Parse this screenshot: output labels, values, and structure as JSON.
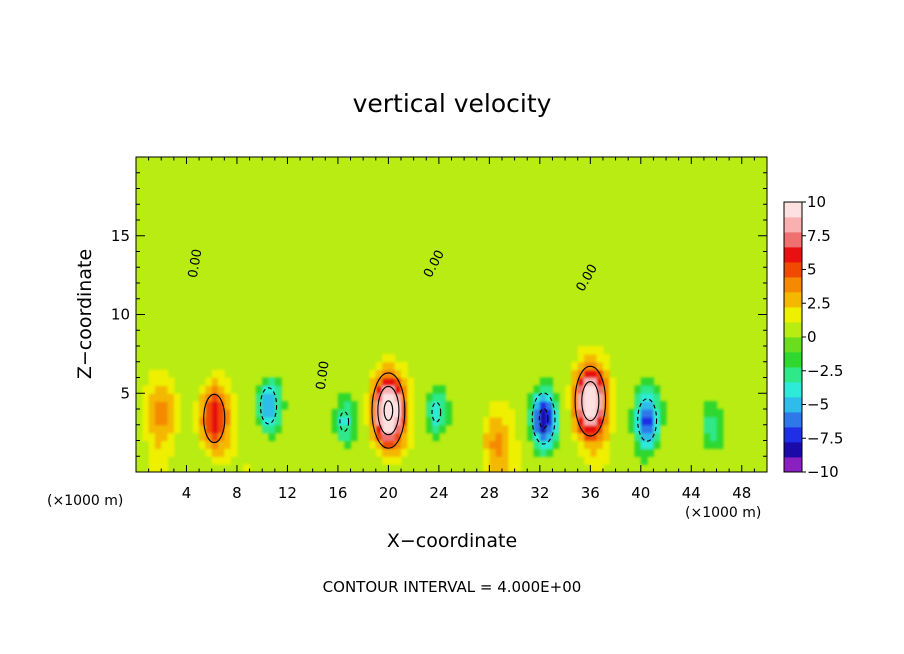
{
  "chart_data": {
    "type": "heatmap",
    "title": "vertical velocity",
    "xlabel": "X−coordinate",
    "ylabel": "Z−coordinate",
    "x_unit": "(×1000 m)",
    "x_unit_right": "(×1000 m)",
    "xlim": [
      0,
      50
    ],
    "ylim": [
      0,
      20
    ],
    "x_ticks": [
      4,
      8,
      12,
      16,
      20,
      24,
      28,
      32,
      36,
      40,
      44,
      48
    ],
    "y_ticks": [
      5,
      10,
      15
    ],
    "contour_interval_label": "CONTOUR INTERVAL = 4.000E+00",
    "contour_labels": [
      {
        "text": "0.00",
        "x": 5.0,
        "y": 13.2,
        "rotate": -80
      },
      {
        "text": "0.00",
        "x": 15.1,
        "y": 6.1,
        "rotate": -82
      },
      {
        "text": "0.00",
        "x": 23.9,
        "y": 13.1,
        "rotate": -62
      },
      {
        "text": "0.00",
        "x": 36.0,
        "y": 12.2,
        "rotate": -60
      }
    ],
    "colorbar": {
      "min": -10,
      "max": 10,
      "tick_labels": [
        "10",
        "7.5",
        "5",
        "2.5",
        "0",
        "−2.5",
        "−5",
        "−7.5",
        "−10"
      ],
      "tick_values": [
        10,
        7.5,
        5,
        2.5,
        0,
        -2.5,
        -5,
        -7.5,
        -10
      ],
      "colors": [
        "#8a1fc2",
        "#1a0aa8",
        "#1f2fe6",
        "#2f78ea",
        "#2fbcea",
        "#2fead8",
        "#2ee88a",
        "#2fd82f",
        "#6ade1e",
        "#b8ec12",
        "#eef000",
        "#f5b800",
        "#f58a00",
        "#f04a00",
        "#e81010",
        "#f07070",
        "#f8b0b0",
        "#fde0e0"
      ]
    },
    "features": [
      {
        "kind": "updraft",
        "x": 6.2,
        "y": 3.4,
        "peak": 6.5
      },
      {
        "kind": "updraft",
        "x": 2.0,
        "y": 3.8,
        "peak": 3.0
      },
      {
        "kind": "downdraft",
        "x": 10.5,
        "y": 4.2,
        "peak": -6.0
      },
      {
        "kind": "downdraft",
        "x": 16.5,
        "y": 3.2,
        "peak": -4.5
      },
      {
        "kind": "updraft",
        "x": 20.0,
        "y": 3.9,
        "peak": 13.0
      },
      {
        "kind": "downdraft",
        "x": 23.8,
        "y": 3.8,
        "peak": -4.5
      },
      {
        "kind": "updraft",
        "x": 28.5,
        "y": 1.8,
        "peak": 3.0
      },
      {
        "kind": "downdraft",
        "x": 32.3,
        "y": 3.4,
        "peak": -9.0
      },
      {
        "kind": "updraft",
        "x": 36.0,
        "y": 4.5,
        "peak": 11.0
      },
      {
        "kind": "downdraft",
        "x": 40.5,
        "y": 3.3,
        "peak": -7.0
      },
      {
        "kind": "downdraft",
        "x": 45.5,
        "y": 2.8,
        "peak": -3.0
      }
    ]
  }
}
